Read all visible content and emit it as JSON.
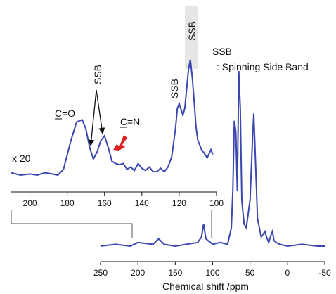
{
  "chart_data": {
    "type": "line",
    "line_color": "#3a47b0",
    "arrow_color": "#e02020",
    "main_panel": {
      "xlabel": "Chemical shift /ppm",
      "xlim": [
        250,
        -50
      ],
      "x_ticks": [
        250,
        200,
        150,
        100,
        50,
        0,
        -50
      ],
      "series": [
        {
          "x": [
            250,
            230,
            210,
            200,
            180,
            172,
            165,
            150,
            135,
            120,
            115,
            112,
            109,
            100,
            90,
            80,
            75,
            73,
            71,
            69,
            67,
            65,
            63,
            61,
            58,
            55,
            50,
            47,
            45,
            43,
            40,
            35,
            30,
            28,
            25,
            22,
            20,
            18,
            15,
            10,
            0,
            -20,
            -40,
            -50
          ],
          "y": [
            0.0,
            0.01,
            0.0,
            0.02,
            0.01,
            0.04,
            0.01,
            0.0,
            0.01,
            0.02,
            0.05,
            0.12,
            0.04,
            0.01,
            0.02,
            0.01,
            0.1,
            0.3,
            0.68,
            0.62,
            0.3,
            0.95,
            0.75,
            0.25,
            0.12,
            0.1,
            0.25,
            0.55,
            0.72,
            0.5,
            0.15,
            0.05,
            0.08,
            0.05,
            0.02,
            0.06,
            0.08,
            0.03,
            0.02,
            0.01,
            0.0,
            0.01,
            0.0,
            0.0
          ]
        }
      ]
    },
    "inset_panel": {
      "xlim": [
        210,
        100
      ],
      "x_ticks": [
        200,
        180,
        160,
        140,
        120,
        100
      ],
      "scale_label": "x 20",
      "series": [
        {
          "x": [
            210,
            205,
            200,
            196,
            192,
            188,
            185,
            182,
            178,
            175,
            172,
            170,
            168,
            166,
            164,
            162,
            160,
            158,
            156,
            154,
            152,
            150,
            148,
            146,
            144,
            142,
            140,
            138,
            136,
            134,
            132,
            130,
            128,
            126,
            124,
            122,
            121,
            120,
            118,
            117,
            115,
            114,
            113,
            112,
            111,
            110,
            108,
            107,
            105,
            103,
            102
          ],
          "y": [
            0.02,
            0.0,
            0.01,
            0.0,
            0.02,
            0.01,
            0.0,
            0.05,
            0.3,
            0.46,
            0.48,
            0.4,
            0.24,
            0.14,
            0.2,
            0.3,
            0.34,
            0.24,
            0.12,
            0.1,
            0.09,
            0.1,
            0.05,
            0.07,
            0.04,
            0.1,
            0.06,
            0.04,
            0.07,
            0.03,
            0.03,
            0.06,
            0.03,
            0.07,
            0.16,
            0.4,
            0.58,
            0.62,
            0.52,
            0.58,
            0.92,
            1.0,
            0.85,
            0.65,
            0.42,
            0.3,
            0.22,
            0.2,
            0.15,
            0.22,
            0.18
          ]
        }
      ]
    },
    "annotations": {
      "ssb_rotated_1": "SSB",
      "ssb_rotated_2": "SSB",
      "ssb_rotated_3": "SSB",
      "legend_ssb": "SSB",
      "legend_def": ": Spinning Side Band",
      "co_letter": "C",
      "co_suffix": "=O",
      "cn_letter": "C",
      "cn_suffix": "=N"
    }
  }
}
